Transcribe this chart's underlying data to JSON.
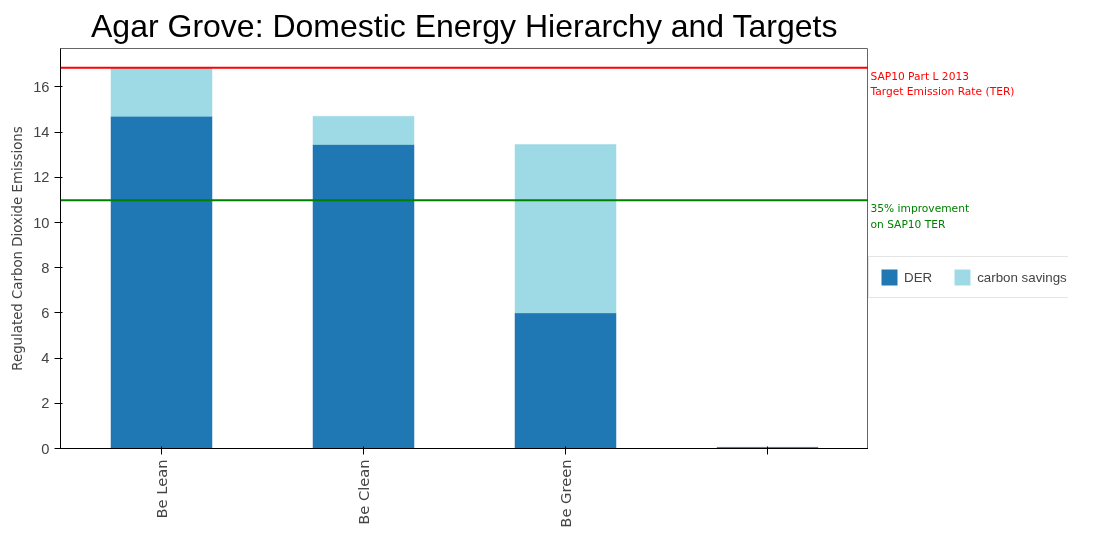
{
  "chart_data": {
    "type": "bar",
    "title": "Agar Grove: Domestic Energy Hierarchy and Targets",
    "ylabel": "Regulated Carbon Dioxide Emissions",
    "categories": [
      "Be Lean",
      "Be Clean",
      "Be Green",
      null
    ],
    "stacked": true,
    "series": [
      {
        "name": "DER",
        "color": "#1f77b4",
        "values": [
          14.7,
          13.45,
          6.0,
          0.05
        ]
      },
      {
        "name": "carbon savings",
        "color": "#9edae5",
        "values": [
          2.15,
          1.25,
          7.45,
          null
        ]
      }
    ],
    "ylim": [
      0,
      17.7
    ],
    "yticks": [
      0,
      2,
      4,
      6,
      8,
      10,
      12,
      14,
      16
    ],
    "ref_lines": [
      {
        "axis": "y",
        "value": 16.85,
        "label": "SAP10 Part L 2013\n Target Emission Rate (TER)",
        "color": "#ff0000"
      },
      {
        "axis": "y",
        "value": 10.98,
        "label": "35% improvement\n on SAP10 TER",
        "color": "#008000"
      }
    ],
    "legend": "right",
    "grid": false
  }
}
